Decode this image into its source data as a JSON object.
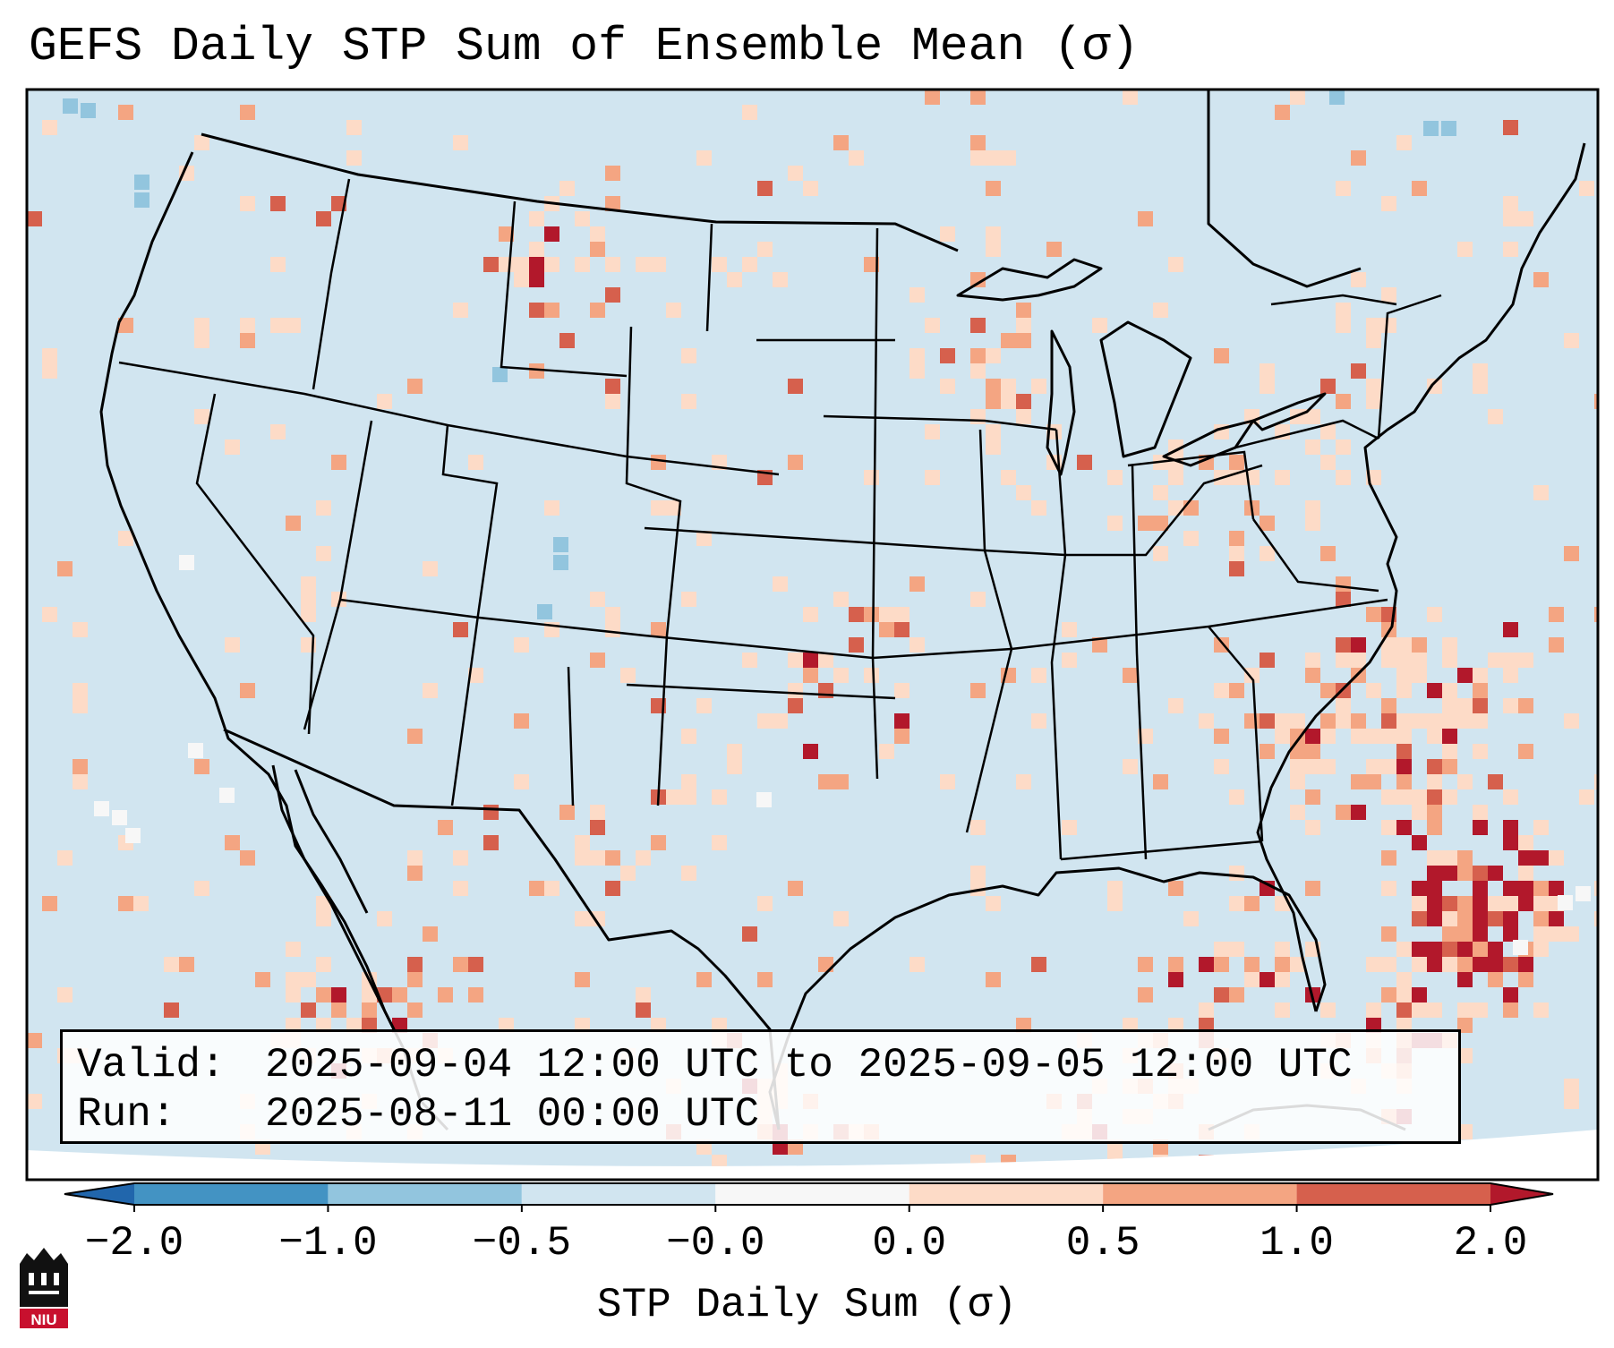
{
  "title": "GEFS Daily STP Sum of Ensemble Mean (σ)",
  "info": {
    "valid_label": "Valid:",
    "valid_value": "2025-09-04 12:00 UTC to 2025-09-05 12:00 UTC",
    "run_label": "Run:",
    "run_value": "2025-08-11 00:00 UTC"
  },
  "colorbar": {
    "label": "STP Daily Sum (σ)",
    "ticks": [
      "−2.0",
      "−1.0",
      "−0.5",
      "−0.0",
      "0.0",
      "0.5",
      "1.0",
      "2.0"
    ],
    "bins": [
      {
        "range": "<-2.0",
        "color": "#2166ac"
      },
      {
        "range": "-2.0 to -1.0",
        "color": "#4393c3"
      },
      {
        "range": "-1.0 to -0.5",
        "color": "#92c5de"
      },
      {
        "range": "-0.5 to -0.0",
        "color": "#d1e5f0"
      },
      {
        "range": "-0.0 to 0.0",
        "color": "#f7f7f7"
      },
      {
        "range": "0.0 to 0.5",
        "color": "#fddbc7"
      },
      {
        "range": "0.5 to 1.0",
        "color": "#f4a582"
      },
      {
        "range": "1.0 to 2.0",
        "color": "#d6604d"
      },
      {
        "range": ">2.0",
        "color": "#b2182b"
      }
    ]
  },
  "logo": {
    "text": "NIU"
  },
  "map": {
    "field": "STP daily sum anomaly (σ)",
    "domain": "Contiguous United States, Mexico, western Atlantic",
    "background_color": "#d1e5f0",
    "land_outline_color": "#000000"
  }
}
